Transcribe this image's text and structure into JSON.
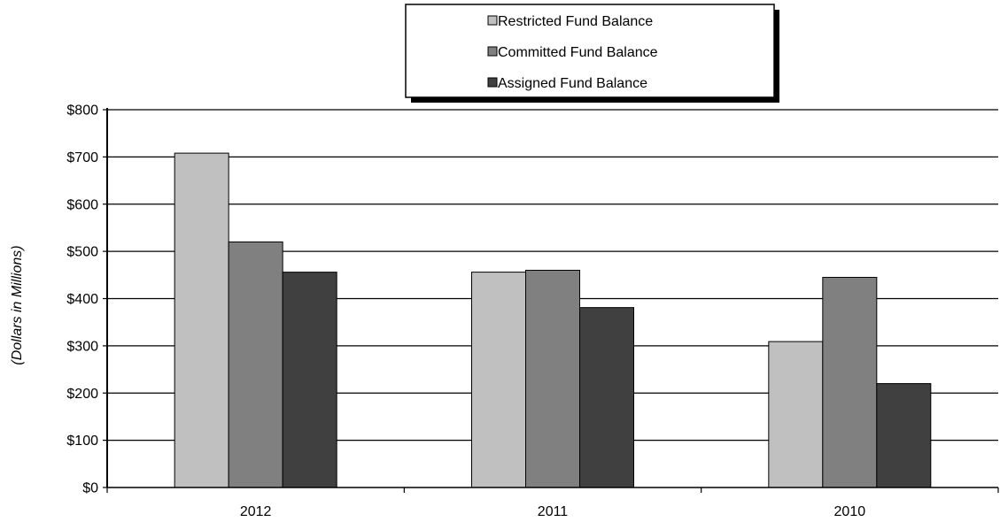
{
  "chart_data": {
    "type": "bar",
    "categories": [
      "2012",
      "2011",
      "2010"
    ],
    "series": [
      {
        "name": "Restricted Fund Balance",
        "values": [
          708,
          456,
          309
        ],
        "color": "#c0c0c0"
      },
      {
        "name": "Committed Fund Balance",
        "values": [
          520,
          460,
          445
        ],
        "color": "#808080"
      },
      {
        "name": "Assigned Fund Balance",
        "values": [
          456,
          381,
          220
        ],
        "color": "#404040"
      }
    ],
    "ylabel": "(Dollars in Millions)",
    "ylim": [
      0,
      800
    ],
    "yticks": [
      {
        "value": 0,
        "label": "$0"
      },
      {
        "value": 100,
        "label": "$100"
      },
      {
        "value": 200,
        "label": "$200"
      },
      {
        "value": 300,
        "label": "$300"
      },
      {
        "value": 400,
        "label": "$400"
      },
      {
        "value": 500,
        "label": "$500"
      },
      {
        "value": 600,
        "label": "$600"
      },
      {
        "value": 700,
        "label": "$700"
      },
      {
        "value": 800,
        "label": "$800"
      }
    ],
    "grid": true,
    "legend_position": "top-center"
  }
}
